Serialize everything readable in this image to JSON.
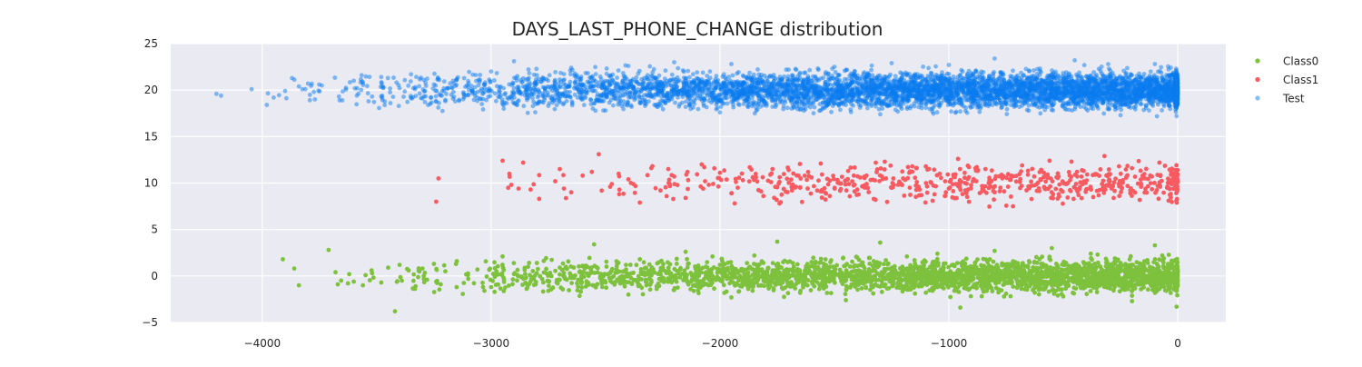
{
  "chart_data": {
    "type": "scatter",
    "title": "DAYS_LAST_PHONE_CHANGE distribution",
    "xlabel": "",
    "ylabel": "",
    "xlim": [
      -4400,
      210
    ],
    "ylim": [
      -5,
      25
    ],
    "x_ticks": [
      -4000,
      -3000,
      -2000,
      -1000,
      0
    ],
    "x_tick_labels": [
      "−4000",
      "−3000",
      "−2000",
      "−1000",
      "0"
    ],
    "y_ticks": [
      -5,
      0,
      5,
      10,
      15,
      20,
      25
    ],
    "y_tick_labels": [
      "−5",
      "0",
      "5",
      "10",
      "15",
      "20",
      "25"
    ],
    "grid": true,
    "legend_position": "right",
    "background_color": "#eaeaf2",
    "series": [
      {
        "name": "Class0",
        "color": "#7dc13d",
        "opacity": 1.0,
        "y_center": 0,
        "x": [
          -3910,
          -3860,
          -3840,
          -3710,
          -3680,
          -3670,
          -3620,
          -3600,
          -3560,
          -3520,
          -3480,
          -3450,
          -3420,
          -3400,
          -3390,
          -3360,
          -3330,
          -3300,
          -3280,
          -3250,
          -3220,
          -3200,
          -3150,
          -3100,
          -3060,
          -3000,
          -2950,
          -2900,
          -2850,
          -2800,
          -2750,
          -2700,
          -2650,
          -2600,
          -2550,
          -2500,
          -2450,
          -2400,
          -2350,
          -2300,
          -2250,
          -2200,
          -2150,
          -2100,
          -2050,
          -2000,
          -1950,
          -1900,
          -1850,
          -1800,
          -1750,
          -1700,
          -1650,
          -1600,
          -1550,
          -1500,
          -1450,
          -1400,
          -1350,
          -1300,
          -1250,
          -1200,
          -1150,
          -1100,
          -1050,
          -1000,
          -950,
          -900,
          -850,
          -800,
          -750,
          -700,
          -650,
          -600,
          -550,
          -500,
          -450,
          -400,
          -350,
          -300,
          -250,
          -200,
          -150,
          -100,
          -50,
          -20,
          -5
        ],
        "y": [
          1.8,
          0.8,
          -1.0,
          2.8,
          0.4,
          -0.9,
          0.2,
          -0.6,
          -1.0,
          0.3,
          -0.7,
          0.9,
          -3.8,
          1.2,
          -0.5,
          0.6,
          -1.1,
          0.8,
          -0.4,
          1.3,
          -0.9,
          0.5,
          1.6,
          -0.3,
          0.7,
          -1.2,
          2.1,
          0.2,
          -0.8,
          1.4,
          -1.6,
          0.9,
          -0.2,
          1.1,
          3.4,
          -0.7,
          0.4,
          -2.0,
          1.8,
          -0.5,
          0.9,
          -1.5,
          2.6,
          0.3,
          -1.0,
          1.2,
          -2.3,
          0.7,
          2.2,
          -0.4,
          3.7,
          0.1,
          -1.8,
          1.5,
          -0.9,
          0.6,
          -2.6,
          2.0,
          -0.2,
          3.6,
          0.8,
          -1.3,
          1.7,
          -0.6,
          2.4,
          0.2,
          -3.4,
          1.0,
          -0.8,
          2.7,
          -1.9,
          0.5,
          1.6,
          -0.3,
          3.0,
          -2.2,
          0.9,
          -1.1,
          2.3,
          -0.5,
          1.4,
          -2.7,
          0.6,
          3.3,
          -1.6,
          0.3,
          -3.3
        ]
      },
      {
        "name": "Class1",
        "color": "#f75a60",
        "opacity": 1.0,
        "y_center": 10,
        "x": [
          -3240,
          -3230,
          -2950,
          -2920,
          -2880,
          -2860,
          -2790,
          -2720,
          -2700,
          -2650,
          -2600,
          -2560,
          -2530,
          -2480,
          -2440,
          -2400,
          -2350,
          -2300,
          -2260,
          -2200,
          -2150,
          -2080,
          -2030,
          -2000,
          -1950,
          -1900,
          -1870,
          -1820,
          -1780,
          -1740,
          -1700,
          -1650,
          -1600,
          -1560,
          -1520,
          -1480,
          -1440,
          -1400,
          -1360,
          -1320,
          -1280,
          -1240,
          -1200,
          -1160,
          -1120,
          -1080,
          -1040,
          -1000,
          -960,
          -920,
          -880,
          -840,
          -800,
          -760,
          -720,
          -680,
          -640,
          -600,
          -560,
          -520,
          -480,
          -440,
          -400,
          -360,
          -320,
          -280,
          -240,
          -200,
          -160,
          -120,
          -80,
          -40,
          -20,
          -10
        ],
        "y": [
          8.0,
          10.5,
          12.4,
          11.0,
          9.4,
          12.2,
          8.3,
          10.2,
          11.5,
          9.0,
          10.8,
          11.2,
          13.1,
          9.6,
          8.8,
          10.4,
          7.9,
          11.6,
          9.2,
          10.7,
          8.4,
          12.0,
          9.9,
          11.1,
          8.9,
          10.3,
          11.7,
          9.1,
          10.9,
          7.8,
          11.4,
          9.5,
          10.6,
          12.1,
          8.6,
          10.0,
          11.3,
          9.3,
          10.8,
          8.2,
          12.3,
          9.8,
          10.5,
          11.8,
          8.7,
          10.1,
          11.0,
          9.4,
          12.6,
          8.5,
          10.2,
          11.5,
          9.0,
          10.7,
          7.5,
          11.9,
          9.7,
          10.4,
          12.4,
          8.8,
          10.0,
          11.2,
          9.3,
          10.9,
          12.9,
          8.4,
          10.3,
          11.6,
          9.6,
          10.8,
          12.2,
          8.1,
          10.5,
          11.0
        ]
      },
      {
        "name": "Test",
        "color": "#0a7bf0",
        "opacity": 0.5,
        "y_center": 20,
        "x": [
          -4200,
          -4180,
          -3980,
          -3950,
          -3900,
          -3870,
          -3840,
          -3800,
          -3770,
          -3740,
          -3650,
          -3600,
          -3560,
          -3520,
          -3480,
          -3440,
          -3400,
          -3350,
          -3300,
          -3250,
          -3200,
          -3150,
          -3100,
          -3050,
          -3000,
          -2950,
          -2900,
          -2850,
          -2800,
          -2750,
          -2700,
          -2650,
          -2600,
          -2550,
          -2500,
          -2450,
          -2400,
          -2350,
          -2300,
          -2250,
          -2200,
          -2150,
          -2100,
          -2050,
          -2000,
          -1950,
          -1900,
          -1850,
          -1800,
          -1750,
          -1700,
          -1650,
          -1600,
          -1550,
          -1500,
          -1450,
          -1400,
          -1350,
          -1300,
          -1250,
          -1200,
          -1150,
          -1100,
          -1050,
          -1000,
          -950,
          -900,
          -850,
          -800,
          -750,
          -700,
          -650,
          -600,
          -550,
          -500,
          -450,
          -400,
          -350,
          -300,
          -250,
          -200,
          -150,
          -100,
          -50,
          -20,
          -5
        ],
        "y": [
          19.6,
          19.4,
          18.4,
          19.2,
          19.9,
          21.3,
          20.4,
          20.7,
          19.0,
          20.5,
          18.9,
          21.0,
          20.8,
          19.3,
          21.4,
          18.6,
          20.2,
          21.7,
          19.1,
          20.6,
          18.8,
          21.2,
          19.5,
          20.9,
          22.0,
          18.5,
          23.1,
          19.8,
          21.6,
          18.3,
          20.4,
          22.4,
          19.0,
          21.1,
          17.8,
          20.7,
          22.6,
          18.9,
          21.5,
          19.6,
          23.0,
          18.2,
          21.9,
          20.1,
          17.6,
          22.8,
          19.4,
          21.3,
          18.7,
          20.6,
          22.2,
          17.9,
          21.0,
          19.2,
          22.5,
          18.4,
          20.8,
          21.7,
          17.4,
          22.9,
          19.7,
          21.4,
          18.1,
          20.3,
          22.7,
          17.7,
          21.8,
          19.0,
          23.4,
          18.6,
          20.9,
          22.1,
          17.5,
          21.2,
          19.5,
          23.2,
          18.0,
          20.6,
          22.3,
          17.3,
          21.6,
          19.3,
          22.8,
          18.8,
          20.4,
          17.2
        ]
      }
    ]
  }
}
